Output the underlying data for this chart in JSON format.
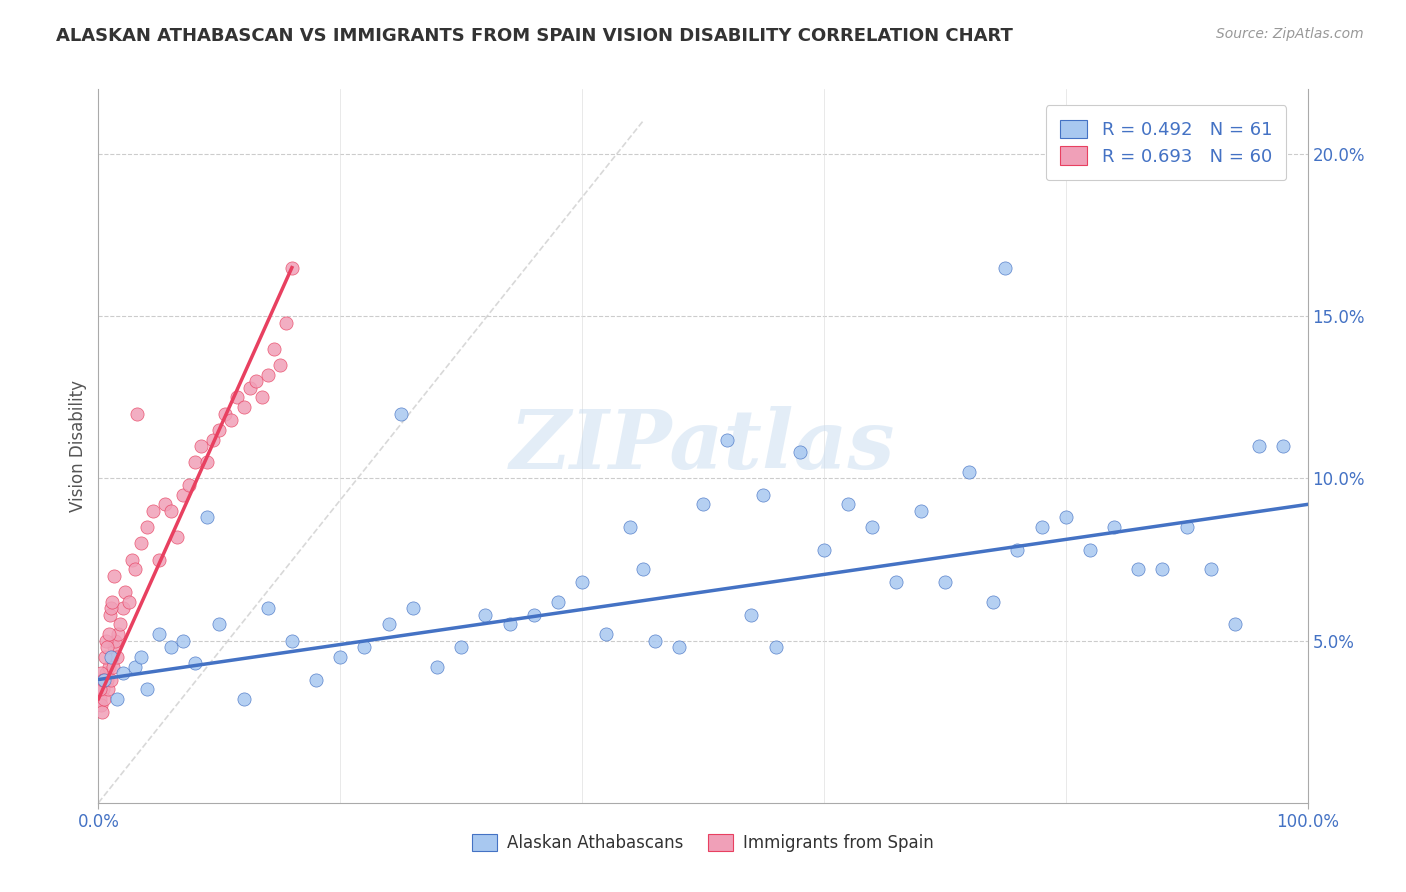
{
  "title": "ALASKAN ATHABASCAN VS IMMIGRANTS FROM SPAIN VISION DISABILITY CORRELATION CHART",
  "source": "Source: ZipAtlas.com",
  "ylabel": "Vision Disability",
  "legend_label1": "Alaskan Athabascans",
  "legend_label2": "Immigrants from Spain",
  "R1": 0.492,
  "N1": 61,
  "R2": 0.693,
  "N2": 60,
  "xlim": [
    0,
    100
  ],
  "ylim": [
    0,
    22
  ],
  "color_blue": "#A8C8F0",
  "color_pink": "#F0A0B8",
  "color_blue_line": "#4472C4",
  "color_pink_line": "#E84060",
  "color_dashed": "#C8C8C8",
  "watermark": "ZIPatlas",
  "blue_x": [
    0.5,
    1.0,
    1.5,
    2.0,
    3.0,
    4.0,
    5.0,
    6.0,
    7.0,
    8.0,
    10.0,
    12.0,
    14.0,
    16.0,
    18.0,
    20.0,
    22.0,
    24.0,
    26.0,
    28.0,
    30.0,
    32.0,
    34.0,
    36.0,
    38.0,
    40.0,
    42.0,
    44.0,
    46.0,
    48.0,
    50.0,
    52.0,
    54.0,
    56.0,
    58.0,
    60.0,
    62.0,
    64.0,
    66.0,
    68.0,
    70.0,
    72.0,
    74.0,
    76.0,
    78.0,
    80.0,
    82.0,
    84.0,
    86.0,
    88.0,
    90.0,
    92.0,
    94.0,
    96.0,
    98.0,
    3.5,
    9.0,
    25.0,
    45.0,
    75.0,
    55.0
  ],
  "blue_y": [
    3.8,
    4.5,
    3.2,
    4.0,
    4.2,
    3.5,
    5.2,
    4.8,
    5.0,
    4.3,
    5.5,
    3.2,
    6.0,
    5.0,
    3.8,
    4.5,
    4.8,
    5.5,
    6.0,
    4.2,
    4.8,
    5.8,
    5.5,
    5.8,
    6.2,
    6.8,
    5.2,
    8.5,
    5.0,
    4.8,
    9.2,
    11.2,
    5.8,
    4.8,
    10.8,
    7.8,
    9.2,
    8.5,
    6.8,
    9.0,
    6.8,
    10.2,
    6.2,
    7.8,
    8.5,
    8.8,
    7.8,
    8.5,
    7.2,
    7.2,
    8.5,
    7.2,
    5.5,
    11.0,
    11.0,
    4.5,
    8.8,
    12.0,
    7.2,
    16.5,
    9.5
  ],
  "pink_x": [
    0.1,
    0.2,
    0.3,
    0.4,
    0.5,
    0.6,
    0.7,
    0.8,
    0.9,
    1.0,
    1.1,
    1.2,
    1.3,
    1.4,
    1.5,
    1.6,
    1.8,
    2.0,
    2.2,
    2.5,
    2.8,
    3.0,
    3.5,
    4.0,
    4.5,
    5.0,
    5.5,
    6.0,
    6.5,
    7.0,
    7.5,
    8.0,
    8.5,
    9.0,
    9.5,
    10.0,
    10.5,
    11.0,
    11.5,
    12.0,
    12.5,
    13.0,
    13.5,
    14.0,
    14.5,
    15.0,
    15.5,
    16.0,
    0.15,
    0.25,
    0.35,
    0.55,
    0.65,
    0.75,
    0.85,
    0.95,
    1.05,
    1.15,
    1.25,
    3.2
  ],
  "pink_y": [
    3.2,
    3.0,
    2.8,
    3.5,
    3.2,
    4.0,
    3.8,
    3.5,
    4.2,
    3.8,
    4.5,
    4.2,
    4.8,
    5.0,
    4.5,
    5.2,
    5.5,
    6.0,
    6.5,
    6.2,
    7.5,
    7.2,
    8.0,
    8.5,
    9.0,
    7.5,
    9.2,
    9.0,
    8.2,
    9.5,
    9.8,
    10.5,
    11.0,
    10.5,
    11.2,
    11.5,
    12.0,
    11.8,
    12.5,
    12.2,
    12.8,
    13.0,
    12.5,
    13.2,
    14.0,
    13.5,
    14.8,
    16.5,
    3.5,
    4.0,
    3.8,
    4.5,
    5.0,
    4.8,
    5.2,
    5.8,
    6.0,
    6.2,
    7.0,
    12.0
  ],
  "blue_line_x": [
    0,
    100
  ],
  "blue_line_y": [
    3.8,
    9.2
  ],
  "pink_line_x": [
    0,
    16
  ],
  "pink_line_y": [
    3.2,
    16.5
  ],
  "dash_line_x": [
    0,
    45
  ],
  "dash_line_y": [
    0,
    21
  ]
}
